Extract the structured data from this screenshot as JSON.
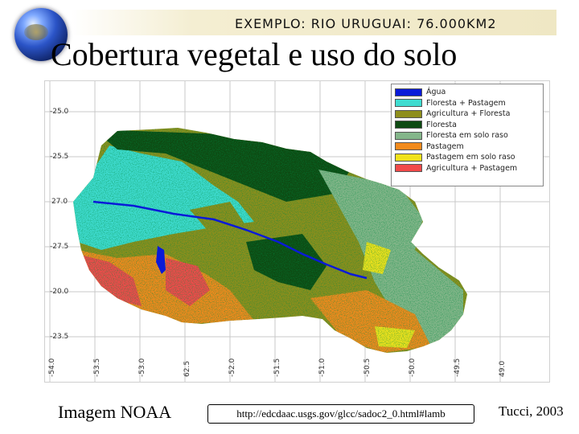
{
  "header": {
    "subtitle": "EXEMPLO: RIO URUGUAI: 76.000KM2",
    "title": "Cobertura vegetal e uso do solo"
  },
  "map": {
    "latitude_labels": [
      "-25.0",
      "-25.5",
      "27.0",
      "-27.5",
      "-20.0",
      "-23.5"
    ],
    "longitude_labels": [
      "-54.0",
      "-53.5",
      "-53.0",
      "62.5",
      "-52.0",
      "-51.5",
      "-51.0",
      "-50.5",
      "-50.0",
      "-49.5",
      "49.0"
    ],
    "legend": [
      {
        "label": "Água",
        "color": "#0a1ad8"
      },
      {
        "label": "Floresta + Pastagem",
        "color": "#3fdcd0"
      },
      {
        "label": "Agricultura + Floresta",
        "color": "#8e8e1c"
      },
      {
        "label": "Floresta",
        "color": "#0d4a12"
      },
      {
        "label": "Floresta em solo raso",
        "color": "#84b68a"
      },
      {
        "label": "Pastagem",
        "color": "#f28a1c"
      },
      {
        "label": "Pastagem em solo raso",
        "color": "#f0e21c"
      },
      {
        "label": "Agricultura + Pastagem",
        "color": "#f24a4a"
      }
    ]
  },
  "footer": {
    "left": "Imagem NOAA",
    "url": "http://edcdaac.usgs.gov/glcc/sadoc2_0.html#lamb",
    "right": "Tucci, 2003"
  }
}
